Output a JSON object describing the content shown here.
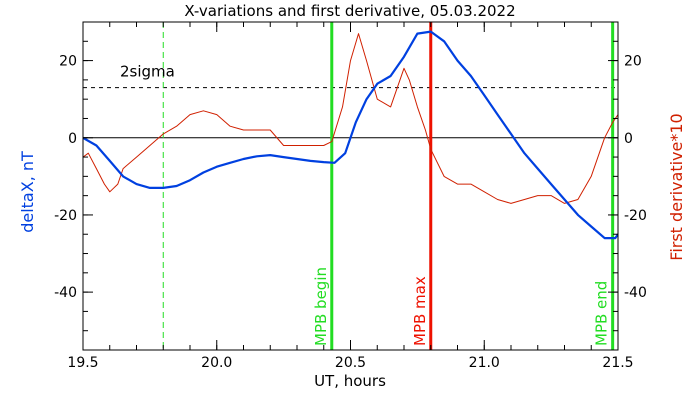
{
  "chart_data": {
    "type": "line",
    "title": "X-variations and first derivative, 05.03.2022",
    "xlabel": "UT, hours",
    "ylabel_left": "deltaX, nT",
    "ylabel_right": "First derivative*10",
    "xlim": [
      19.5,
      21.5
    ],
    "ylim": [
      -55,
      30
    ],
    "grid": false,
    "x_ticks": [
      "19.5",
      "20.0",
      "20.5",
      "21.0",
      "21.5"
    ],
    "y_ticks": [
      "20",
      "0",
      "-20",
      "-40"
    ],
    "colors": {
      "deltaX": "#0040e0",
      "derivative": "#d02000",
      "mpb": "#22dd22",
      "mpb_max": "#ee1100",
      "axes": "#000000"
    },
    "series": [
      {
        "name": "deltaX, nT",
        "x": [
          19.5,
          19.55,
          19.6,
          19.65,
          19.7,
          19.75,
          19.8,
          19.85,
          19.9,
          19.95,
          20.0,
          20.05,
          20.1,
          20.15,
          20.2,
          20.25,
          20.3,
          20.35,
          20.4,
          20.44,
          20.48,
          20.52,
          20.56,
          20.6,
          20.65,
          20.7,
          20.75,
          20.8,
          20.85,
          20.9,
          20.95,
          21.0,
          21.05,
          21.1,
          21.15,
          21.2,
          21.25,
          21.3,
          21.35,
          21.4,
          21.45,
          21.49,
          21.5
        ],
        "values": [
          0,
          -2,
          -6,
          -10,
          -12,
          -13,
          -13,
          -12.5,
          -11,
          -9,
          -7.5,
          -6.5,
          -5.5,
          -4.8,
          -4.5,
          -5,
          -5.5,
          -6,
          -6.3,
          -6.5,
          -4,
          4,
          10,
          14,
          16,
          21,
          27,
          27.5,
          25,
          20,
          16,
          11,
          6,
          1,
          -4,
          -8,
          -12,
          -16,
          -20,
          -23,
          -26,
          -26,
          -25
        ]
      },
      {
        "name": "First derivative*10",
        "x": [
          19.5,
          19.52,
          19.55,
          19.58,
          19.6,
          19.63,
          19.65,
          19.7,
          19.75,
          19.8,
          19.85,
          19.9,
          19.95,
          20.0,
          20.05,
          20.1,
          20.15,
          20.2,
          20.25,
          20.3,
          20.35,
          20.4,
          20.43,
          20.47,
          20.5,
          20.53,
          20.56,
          20.6,
          20.65,
          20.7,
          20.72,
          20.75,
          20.78,
          20.8,
          20.85,
          20.9,
          20.95,
          21.0,
          21.05,
          21.1,
          21.15,
          21.2,
          21.25,
          21.3,
          21.35,
          21.4,
          21.45,
          21.48,
          21.5
        ],
        "values": [
          -5,
          -4,
          -8,
          -12,
          -14,
          -12,
          -8,
          -5,
          -2,
          1,
          3,
          6,
          7,
          6,
          3,
          2,
          2,
          2,
          -2,
          -2,
          -2,
          -2,
          -1,
          8,
          20,
          27,
          20,
          10,
          8,
          18,
          15,
          8,
          2,
          -3,
          -10,
          -12,
          -12,
          -14,
          -16,
          -17,
          -16,
          -15,
          -15,
          -17,
          -16,
          -10,
          0,
          4,
          6
        ]
      }
    ],
    "threshold": {
      "label": "2sigma",
      "value": 13
    },
    "zero_line": 0,
    "vertical_lines": [
      {
        "x": 19.8,
        "style": "dashed",
        "label": ""
      },
      {
        "x": 20.43,
        "style": "solid",
        "label": "MPB begin"
      },
      {
        "x": 20.8,
        "style": "solid",
        "label": "MPB max"
      },
      {
        "x": 21.48,
        "style": "solid",
        "label": "MPB end"
      }
    ]
  }
}
